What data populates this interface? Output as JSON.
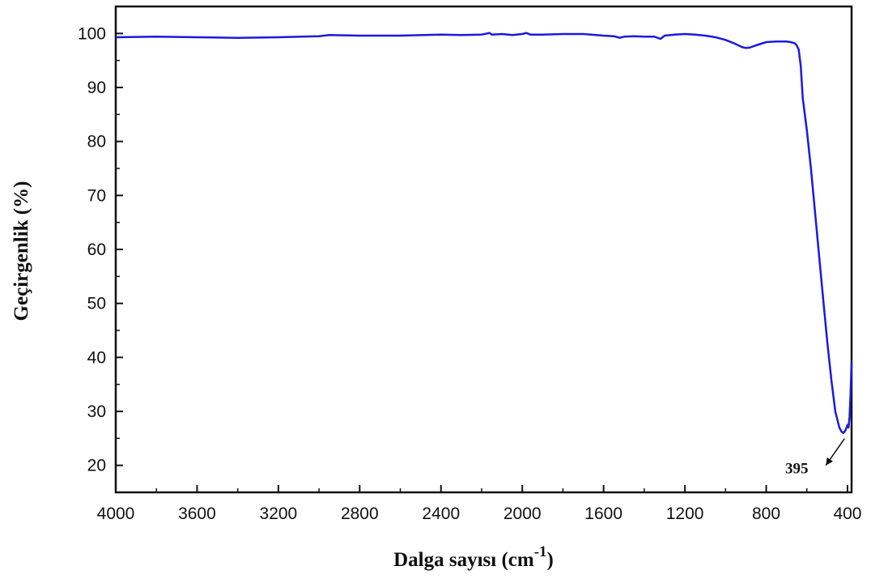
{
  "chart_data": {
    "type": "line",
    "title": "",
    "xlabel": "Dalga sayısı (cm",
    "xlabel_sup": "-1",
    "xlabel_close": ")",
    "ylabel": "Geçirgenlik (%)",
    "xlim": [
      4000,
      380
    ],
    "x_reversed": true,
    "ylim": [
      15,
      105
    ],
    "xticks": [
      4000,
      3600,
      3200,
      2800,
      2400,
      2000,
      1600,
      1200,
      800,
      400
    ],
    "yticks": [
      20,
      30,
      40,
      50,
      60,
      70,
      80,
      90,
      100
    ],
    "grid": false,
    "legend": "none",
    "series": [
      {
        "color": "#1a1adf",
        "x": [
          4000,
          3800,
          3600,
          3400,
          3200,
          3000,
          2950,
          2800,
          2600,
          2400,
          2300,
          2200,
          2160,
          2150,
          2100,
          2050,
          2000,
          1980,
          1960,
          1900,
          1800,
          1700,
          1600,
          1550,
          1520,
          1500,
          1450,
          1400,
          1350,
          1320,
          1300,
          1250,
          1200,
          1150,
          1100,
          1050,
          1000,
          960,
          920,
          900,
          880,
          850,
          800,
          750,
          700,
          680,
          660,
          650,
          640,
          630,
          620,
          600,
          580,
          560,
          540,
          520,
          500,
          480,
          460,
          440,
          430,
          420,
          410,
          400,
          395,
          390,
          385,
          380
        ],
        "y": [
          99.3,
          99.4,
          99.3,
          99.2,
          99.3,
          99.5,
          99.7,
          99.6,
          99.6,
          99.8,
          99.7,
          99.8,
          100.1,
          99.8,
          99.9,
          99.7,
          99.9,
          100.1,
          99.8,
          99.8,
          99.9,
          99.9,
          99.6,
          99.5,
          99.2,
          99.4,
          99.5,
          99.4,
          99.4,
          99.0,
          99.6,
          99.8,
          99.9,
          99.8,
          99.6,
          99.3,
          98.8,
          98.2,
          97.5,
          97.3,
          97.4,
          97.8,
          98.4,
          98.5,
          98.5,
          98.4,
          98.2,
          97.8,
          97.0,
          94.0,
          88.0,
          82.0,
          75.0,
          67.0,
          59.0,
          51.0,
          43.0,
          36.0,
          30.0,
          27.0,
          26.3,
          26.0,
          26.5,
          27.5,
          27.0,
          29.0,
          33.0,
          39.0
        ]
      }
    ],
    "annotations": [
      {
        "text": "395",
        "x": 395,
        "y": 26,
        "arrow": true
      }
    ]
  }
}
